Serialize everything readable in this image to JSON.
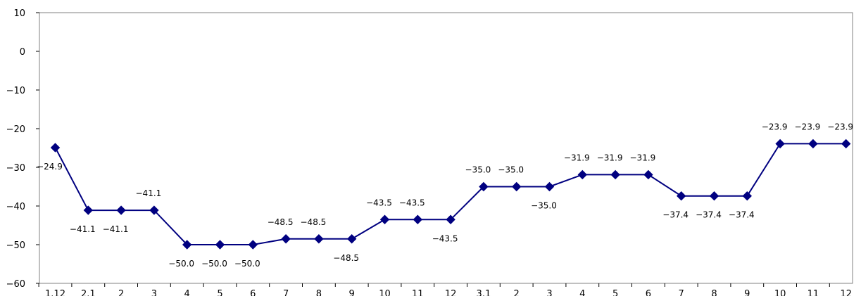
{
  "chart_data": {
    "type": "line",
    "title": "",
    "xlabel": "",
    "ylabel": "",
    "ylim": [
      -60,
      10
    ],
    "yticks": [
      10,
      0,
      -10,
      -20,
      -30,
      -40,
      -50,
      -60
    ],
    "categories": [
      "1.12",
      "2.1",
      "2",
      "3",
      "4",
      "5",
      "6",
      "7",
      "8",
      "9",
      "10",
      "11",
      "12",
      "3.1",
      "2",
      "3",
      "4",
      "5",
      "6",
      "7",
      "8",
      "9",
      "10",
      "11",
      "12"
    ],
    "series": [
      {
        "color": "#000080",
        "marker": "diamond",
        "values": [
          -24.9,
          -41.1,
          -41.1,
          -41.1,
          -50.0,
          -50.0,
          -50.0,
          -48.5,
          -48.5,
          -48.5,
          -43.5,
          -43.5,
          -43.5,
          -35.0,
          -35.0,
          -35.0,
          -31.9,
          -31.9,
          -31.9,
          -37.4,
          -37.4,
          -37.4,
          -23.9,
          -23.9,
          -23.9
        ],
        "data_labels": [
          "−24.9",
          "−41.1",
          "−41.1",
          "−41.1",
          "−50.0",
          "−50.0",
          "−50.0",
          "−48.5",
          "−48.5",
          "−48.5",
          "−43.5",
          "−43.5",
          "−43.5",
          "−35.0",
          "−35.0",
          "−35.0",
          "−31.9",
          "−31.9",
          "−31.9",
          "−37.4",
          "−37.4",
          "−37.4",
          "−23.9",
          "−23.9",
          "−23.9"
        ]
      }
    ],
    "grid": false,
    "legend": "none"
  }
}
